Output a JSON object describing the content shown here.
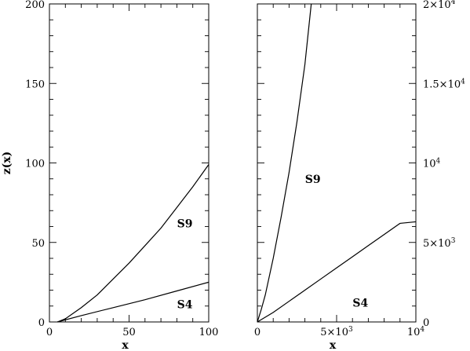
{
  "chart_data": [
    {
      "type": "line",
      "xlabel": "x",
      "ylabel": "z(x)",
      "xlim": [
        0,
        100
      ],
      "ylim": [
        0,
        200
      ],
      "x_ticks": [
        {
          "v": 0,
          "label": "0"
        },
        {
          "v": 50,
          "label": "50"
        },
        {
          "v": 100,
          "label": "100"
        }
      ],
      "y_ticks": [
        {
          "v": 0,
          "label": "0"
        },
        {
          "v": 50,
          "label": "50"
        },
        {
          "v": 100,
          "label": "100"
        },
        {
          "v": 150,
          "label": "150"
        },
        {
          "v": 200,
          "label": "200"
        }
      ],
      "series": [
        {
          "name": "S9",
          "label_at": [
            85,
            62
          ],
          "x": [
            5,
            10,
            20,
            30,
            40,
            50,
            60,
            70,
            80,
            90,
            100
          ],
          "values": [
            0,
            2,
            9,
            17,
            27,
            37,
            48,
            59,
            72,
            85,
            99
          ]
        },
        {
          "name": "S4",
          "label_at": [
            85,
            11
          ],
          "x": [
            5,
            20,
            40,
            60,
            80,
            100
          ],
          "values": [
            0,
            4,
            9,
            14,
            19.5,
            25
          ]
        }
      ]
    },
    {
      "type": "line",
      "xlabel": "x",
      "ylabel": "",
      "xlim": [
        0,
        10000
      ],
      "ylim": [
        0,
        20000
      ],
      "y_axis_side": "right",
      "x_ticks": [
        {
          "v": 0,
          "base": "0",
          "exp": ""
        },
        {
          "v": 5000,
          "base": "5×10",
          "exp": "3"
        },
        {
          "v": 10000,
          "base": "10",
          "exp": "4"
        }
      ],
      "y_ticks": [
        {
          "v": 0,
          "base": "0",
          "exp": ""
        },
        {
          "v": 5000,
          "base": "5×10",
          "exp": "3"
        },
        {
          "v": 10000,
          "base": "10",
          "exp": "4"
        },
        {
          "v": 15000,
          "base": "1.5×10",
          "exp": "4"
        },
        {
          "v": 20000,
          "base": "2×10",
          "exp": "4"
        }
      ],
      "series": [
        {
          "name": "S9",
          "label_at": [
            3500,
            9000
          ],
          "x": [
            0,
            250,
            500,
            1000,
            1500,
            2000,
            2500,
            3000,
            3400
          ],
          "values": [
            0,
            800,
            1700,
            4000,
            6600,
            9400,
            12600,
            16200,
            20000
          ]
        },
        {
          "name": "S4",
          "label_at": [
            6500,
            1200
          ],
          "x": [
            0,
            1000,
            2000,
            3000,
            4000,
            5000,
            6000,
            7000,
            8000,
            9000,
            10000
          ],
          "values": [
            0,
            600,
            1300,
            2000,
            2700,
            3400,
            4100,
            4800,
            5500,
            6200,
            6300
          ]
        }
      ]
    }
  ]
}
